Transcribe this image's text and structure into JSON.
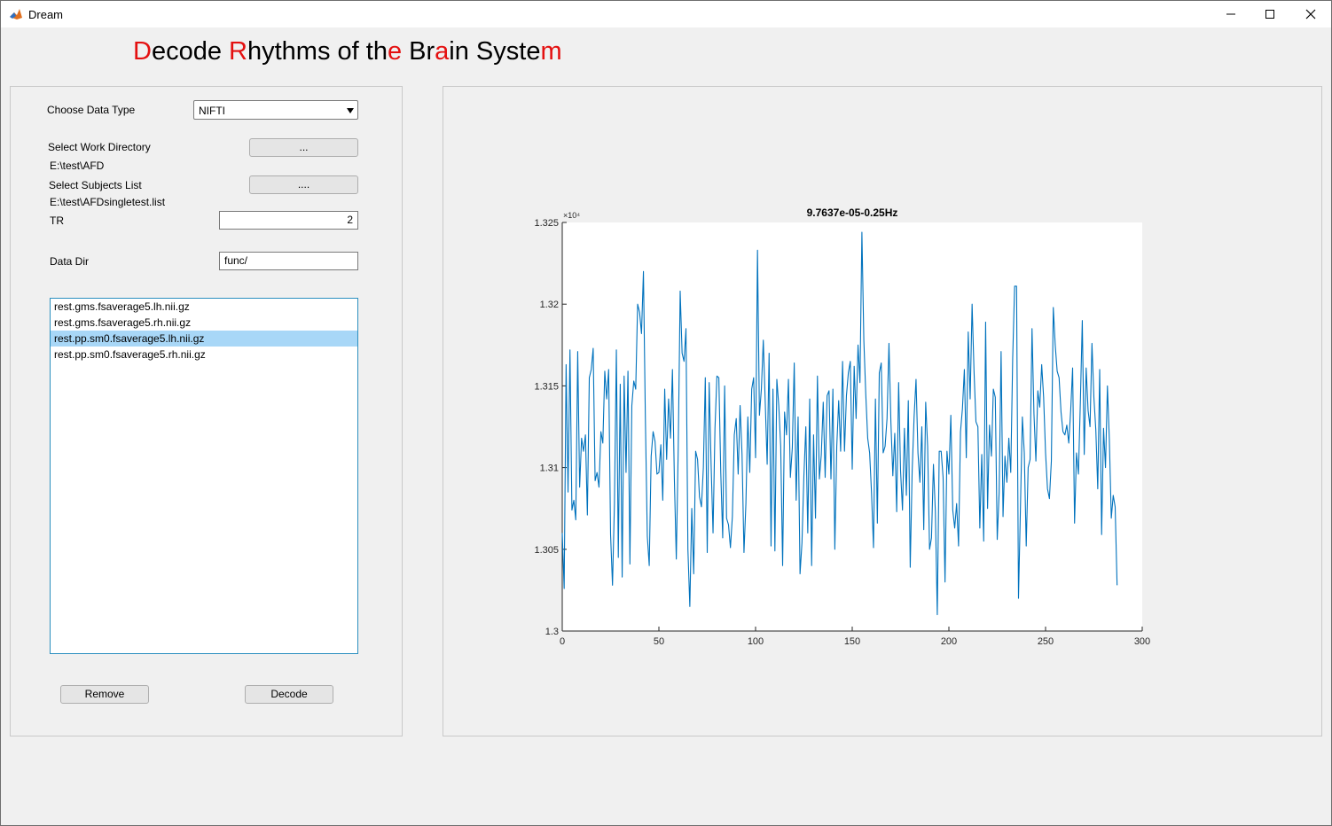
{
  "window": {
    "title": "Dream"
  },
  "heading": {
    "parts": [
      {
        "text": "D",
        "red": true
      },
      {
        "text": "ecode ",
        "red": false
      },
      {
        "text": "R",
        "red": true
      },
      {
        "text": "hythms of th",
        "red": false
      },
      {
        "text": "e",
        "red": true
      },
      {
        "text": " Br",
        "red": false
      },
      {
        "text": "a",
        "red": true
      },
      {
        "text": "in Syste",
        "red": false
      },
      {
        "text": "m",
        "red": true
      }
    ]
  },
  "controls": {
    "choose_type_label": "Choose Data Type",
    "data_type_value": "NIFTI",
    "work_dir_label": "Select Work Directory",
    "work_dir_button": "...",
    "work_dir_path": "E:\\test\\AFD",
    "subjects_label": "Select Subjects List",
    "subjects_button": "....",
    "subjects_path": "E:\\test\\AFDsingletest.list",
    "tr_label": "TR",
    "tr_value": "2",
    "data_dir_label": "Data Dir",
    "data_dir_value": "func/",
    "files": [
      {
        "name": "rest.gms.fsaverage5.lh.nii.gz",
        "selected": false
      },
      {
        "name": "rest.gms.fsaverage5.rh.nii.gz",
        "selected": false
      },
      {
        "name": "rest.pp.sm0.fsaverage5.lh.nii.gz",
        "selected": true
      },
      {
        "name": "rest.pp.sm0.fsaverage5.rh.nii.gz",
        "selected": false
      }
    ],
    "remove_button": "Remove",
    "decode_button": "Decode"
  },
  "colors": {
    "line": "#0072bd",
    "accent_red": "#e41010",
    "selection": "#a8d7f7"
  },
  "chart_data": {
    "type": "line",
    "title": "9.7637e-05-0.25Hz",
    "xlabel": "",
    "ylabel": "",
    "exponent_label": "×10⁴",
    "xlim": [
      0,
      300
    ],
    "ylim": [
      1.3,
      1.325
    ],
    "xticks": [
      0,
      50,
      100,
      150,
      200,
      250,
      300
    ],
    "yticks": [
      1.3,
      1.305,
      1.31,
      1.315,
      1.32,
      1.325
    ],
    "xtick_labels": [
      "0",
      "50",
      "100",
      "150",
      "200",
      "250",
      "300"
    ],
    "ytick_labels": [
      "1.3",
      "1.305",
      "1.31",
      "1.315",
      "1.32",
      "1.325"
    ],
    "grid": false,
    "series": [
      {
        "x_start": 0,
        "x_step": 1,
        "values": [
          1.306,
          1.3026,
          1.3163,
          1.3085,
          1.3172,
          1.3074,
          1.308,
          1.3068,
          1.3171,
          1.3088,
          1.3118,
          1.311,
          1.312,
          1.3071,
          1.3155,
          1.316,
          1.3173,
          1.3092,
          1.3097,
          1.3088,
          1.3122,
          1.3115,
          1.3159,
          1.3142,
          1.316,
          1.3059,
          1.3028,
          1.3078,
          1.3172,
          1.3045,
          1.3151,
          1.3033,
          1.3156,
          1.3097,
          1.3159,
          1.3041,
          1.3138,
          1.3153,
          1.3148,
          1.32,
          1.3195,
          1.3182,
          1.322,
          1.313,
          1.3058,
          1.304,
          1.3107,
          1.3122,
          1.3116,
          1.3096,
          1.3097,
          1.3114,
          1.308,
          1.3148,
          1.3105,
          1.3142,
          1.3118,
          1.316,
          1.3093,
          1.3044,
          1.3112,
          1.3208,
          1.317,
          1.3165,
          1.3185,
          1.305,
          1.3015,
          1.3075,
          1.3035,
          1.311,
          1.3105,
          1.3082,
          1.3076,
          1.31,
          1.3155,
          1.3048,
          1.3152,
          1.3102,
          1.306,
          1.3124,
          1.3156,
          1.3155,
          1.3097,
          1.3057,
          1.315,
          1.3069,
          1.3065,
          1.3051,
          1.307,
          1.312,
          1.313,
          1.3096,
          1.3138,
          1.3108,
          1.3048,
          1.3078,
          1.3131,
          1.3097,
          1.3148,
          1.3155,
          1.3106,
          1.3233,
          1.3132,
          1.3148,
          1.3178,
          1.314,
          1.3102,
          1.317,
          1.3052,
          1.3148,
          1.3049,
          1.3154,
          1.3138,
          1.3113,
          1.304,
          1.3134,
          1.312,
          1.3154,
          1.3094,
          1.3112,
          1.3164,
          1.308,
          1.3131,
          1.3035,
          1.3054,
          1.3095,
          1.3125,
          1.306,
          1.3142,
          1.304,
          1.312,
          1.3069,
          1.3156,
          1.3093,
          1.3108,
          1.314,
          1.3094,
          1.3144,
          1.3147,
          1.3093,
          1.3148,
          1.305,
          1.3113,
          1.3141,
          1.311,
          1.3165,
          1.311,
          1.3144,
          1.3158,
          1.3165,
          1.3099,
          1.3162,
          1.313,
          1.3175,
          1.3152,
          1.3244,
          1.3178,
          1.3145,
          1.3118,
          1.3109,
          1.3084,
          1.3051,
          1.3142,
          1.3066,
          1.3158,
          1.3164,
          1.3109,
          1.3113,
          1.313,
          1.3176,
          1.3128,
          1.3095,
          1.3121,
          1.3073,
          1.3152,
          1.3098,
          1.3074,
          1.3124,
          1.3083,
          1.3141,
          1.3039,
          1.3098,
          1.3131,
          1.3154,
          1.3109,
          1.3091,
          1.3125,
          1.3062,
          1.314,
          1.3113,
          1.305,
          1.3057,
          1.3102,
          1.3073,
          1.301,
          1.311,
          1.311,
          1.3094,
          1.303,
          1.311,
          1.3096,
          1.3132,
          1.3074,
          1.3063,
          1.3078,
          1.3052,
          1.3122,
          1.3136,
          1.316,
          1.3106,
          1.3183,
          1.3142,
          1.32,
          1.3159,
          1.3128,
          1.3125,
          1.3063,
          1.3108,
          1.3055,
          1.3189,
          1.3075,
          1.3126,
          1.3107,
          1.3148,
          1.3143,
          1.3056,
          1.3085,
          1.3171,
          1.307,
          1.3107,
          1.3091,
          1.3118,
          1.3097,
          1.3167,
          1.3211,
          1.3211,
          1.302,
          1.3075,
          1.3131,
          1.3109,
          1.3052,
          1.31,
          1.3105,
          1.3185,
          1.3133,
          1.3104,
          1.3147,
          1.3137,
          1.3163,
          1.3143,
          1.3109,
          1.3087,
          1.3081,
          1.3104,
          1.3198,
          1.3175,
          1.3159,
          1.3155,
          1.3134,
          1.3122,
          1.312,
          1.3126,
          1.3115,
          1.3135,
          1.3161,
          1.3066,
          1.3109,
          1.3096,
          1.314,
          1.319,
          1.3108,
          1.3161,
          1.3135,
          1.3125,
          1.3176,
          1.3143,
          1.3123,
          1.3087,
          1.316,
          1.3059,
          1.3124,
          1.31,
          1.315,
          1.3117,
          1.3069,
          1.3083,
          1.3076,
          1.3028
        ]
      }
    ]
  }
}
